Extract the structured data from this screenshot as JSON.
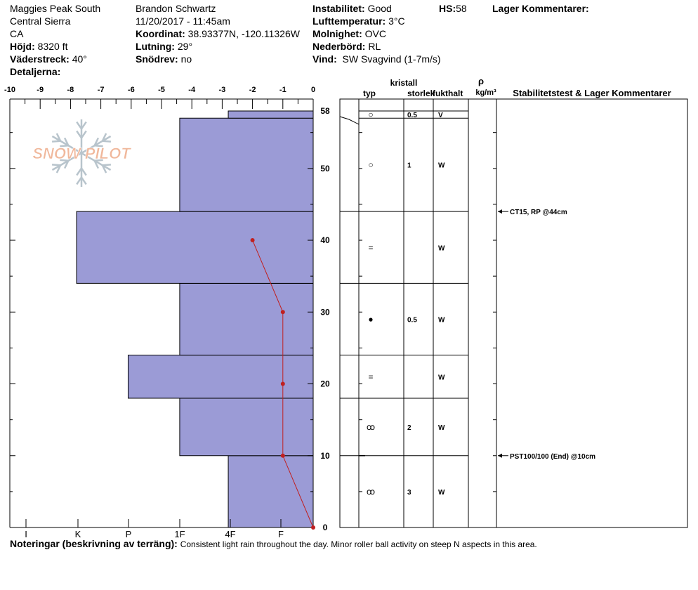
{
  "header": {
    "location": "Maggies Peak South",
    "range": "Central Sierra",
    "state": "CA",
    "elevation_label": "Höjd:",
    "elevation": "8320 ft",
    "aspect_label": "Väderstreck:",
    "aspect": "40°",
    "details_label": "Detaljerna:",
    "observer": "Brandon Schwartz",
    "datetime": "11/20/2017 - 11:45am",
    "coord_label": "Koordinat:",
    "coord": "38.93377N, -120.11326W",
    "slope_label": "Lutning:",
    "slope": "29°",
    "drift_label": "Snödrev:",
    "drift": "no",
    "stability_label": "Instabilitet:",
    "stability": "Good",
    "airtemp_label": "Lufttemperatur:",
    "airtemp": "3°C",
    "sky_label": "Molnighet:",
    "sky": "OVC",
    "precip_label": "Nederbörd:",
    "precip": "RL",
    "wind_label": "Vind:",
    "wind": "SW Svagvind (1-7m/s)",
    "hs_label": "HS:",
    "hs": "58",
    "layer_comments_label": "Lager Kommentarer:"
  },
  "logo_text": "SNOW PILOT",
  "colors": {
    "hardness_fill": "#9b9bd6",
    "temp_line": "#c02020"
  },
  "table": {
    "head_crystal": "kristall",
    "head_type": "typ",
    "head_size": "storlek",
    "head_moisture": "fukthalt",
    "head_rho": "ρ",
    "head_density_unit": "kg/m³",
    "head_comments": "Stabilitetstest & Lager Kommentarer"
  },
  "notes": {
    "label": "Noteringar (beskrivning av terräng):",
    "text": "Consistent light rain throughout the day.  Minor roller ball activity on steep N aspects in this area."
  },
  "chart_data": {
    "type": "snow-profile",
    "height_range": [
      0,
      58
    ],
    "height_ticks": [
      0,
      10,
      20,
      30,
      40,
      50,
      58
    ],
    "temp_range": [
      -10,
      0
    ],
    "temp_ticks": [
      -10,
      -9,
      -8,
      -7,
      -6,
      -5,
      -4,
      -3,
      -2,
      -1,
      0
    ],
    "hardness_scale": [
      "I",
      "K",
      "P",
      "1F",
      "4F",
      "F"
    ],
    "hardness_layers": [
      {
        "bottom": 0,
        "top": 10,
        "temp_value": -2.8
      },
      {
        "bottom": 10,
        "top": 18,
        "temp_value": -4.4
      },
      {
        "bottom": 18,
        "top": 24,
        "temp_value": -6.1
      },
      {
        "bottom": 24,
        "top": 34,
        "temp_value": -4.4
      },
      {
        "bottom": 34,
        "top": 44,
        "temp_value": -7.8
      },
      {
        "bottom": 44,
        "top": 57,
        "temp_value": -4.4
      },
      {
        "bottom": 57,
        "top": 58,
        "temp_value": -2.8
      }
    ],
    "temperature_profile": [
      {
        "height": 0,
        "temp": 0
      },
      {
        "height": 10,
        "temp": -1
      },
      {
        "height": 20,
        "temp": -1
      },
      {
        "height": 30,
        "temp": -1
      },
      {
        "height": 40,
        "temp": -2
      }
    ],
    "layers_table": [
      {
        "bottom": 57,
        "top": 58,
        "type": "○",
        "size": "0.5",
        "moisture": "V"
      },
      {
        "bottom": 44,
        "top": 57,
        "type": "○",
        "size": "1",
        "moisture": "W"
      },
      {
        "bottom": 34,
        "top": 44,
        "type": "=",
        "size": "",
        "moisture": "W"
      },
      {
        "bottom": 24,
        "top": 34,
        "type": "●",
        "size": "0.5",
        "moisture": "W"
      },
      {
        "bottom": 18,
        "top": 24,
        "type": "=",
        "size": "",
        "moisture": "W"
      },
      {
        "bottom": 10,
        "top": 18,
        "type": "ꝏ",
        "size": "2",
        "moisture": "W"
      },
      {
        "bottom": 0,
        "top": 10,
        "type": "ꝏ",
        "size": "3",
        "moisture": "W"
      }
    ],
    "stability_tests": [
      {
        "height": 44,
        "text": "CT15, RP @44cm"
      },
      {
        "height": 10,
        "text": "PST100/100 (End) @10cm"
      }
    ]
  }
}
